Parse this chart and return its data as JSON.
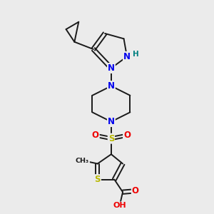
{
  "bg_color": "#ebebeb",
  "bond_color": "#1a1a1a",
  "atom_colors": {
    "N": "#0000ee",
    "S": "#b8b800",
    "O": "#ee0000",
    "H": "#008080",
    "C": "#1a1a1a"
  },
  "figsize": [
    3.0,
    3.0
  ],
  "dpi": 100
}
